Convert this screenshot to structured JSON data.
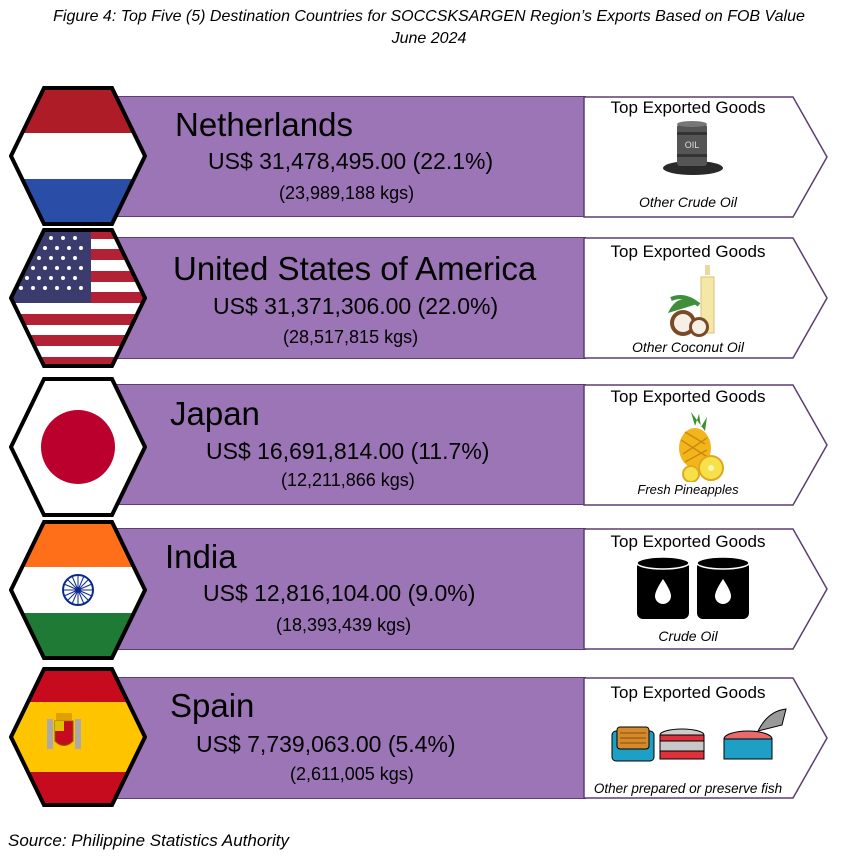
{
  "figure": {
    "title_line1": "Figure 4: Top Five (5) Destination Countries for SOCCSKSARGEN Region’s Exports Based on FOB Value",
    "title_line2": "June 2024"
  },
  "card_heading": "Top Exported Goods",
  "rows": [
    {
      "country": "Netherlands",
      "value": "US$ 31,478,495.00 (22.1%)",
      "weight": "(23,989,188 kgs)",
      "good": "Other Crude Oil",
      "flag": "netherlands-flag",
      "icon": "oil-barrel-icon"
    },
    {
      "country": "United States of America",
      "value": "US$ 31,371,306.00 (22.0%)",
      "weight": "(28,517,815 kgs)",
      "good": "Other Coconut Oil",
      "flag": "usa-flag",
      "icon": "coconut-oil-icon"
    },
    {
      "country": "Japan",
      "value": "US$ 16,691,814.00 (11.7%)",
      "weight": "(12,211,866 kgs)",
      "good": "Fresh Pineapples",
      "flag": "japan-flag",
      "icon": "pineapple-icon"
    },
    {
      "country": "India",
      "value": "US$ 12,816,104.00 (9.0%)",
      "weight": "(18,393,439 kgs)",
      "good": "Crude Oil",
      "flag": "india-flag",
      "icon": "crude-oil-barrels-icon"
    },
    {
      "country": "Spain",
      "value": "US$ 7,739,063.00 (5.4%)",
      "weight": "(2,611,005 kgs)",
      "good": "Other prepared or preserve fish",
      "flag": "spain-flag",
      "icon": "canned-fish-icon"
    }
  ],
  "source": "Source: Philippine Statistics Authority",
  "colors": {
    "band": "#9b75b5",
    "band_border": "#5b3f72",
    "card_border": "#5b3f72"
  }
}
